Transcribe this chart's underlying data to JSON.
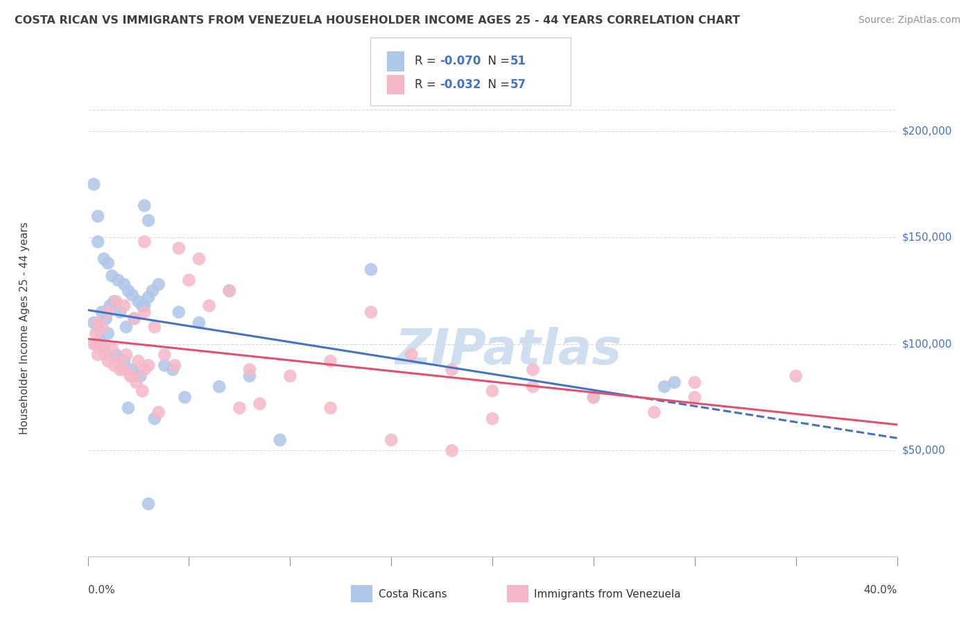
{
  "title": "COSTA RICAN VS IMMIGRANTS FROM VENEZUELA HOUSEHOLDER INCOME AGES 25 - 44 YEARS CORRELATION CHART",
  "source": "Source: ZipAtlas.com",
  "ylabel": "Householder Income Ages 25 - 44 years",
  "ytick_labels": [
    "$50,000",
    "$100,000",
    "$150,000",
    "$200,000"
  ],
  "ytick_values": [
    50000,
    100000,
    150000,
    200000
  ],
  "legend_label1": "Costa Ricans",
  "legend_label2": "Immigrants from Venezuela",
  "R1": "-0.070",
  "N1": "51",
  "R2": "-0.032",
  "N2": "57",
  "color_blue": "#aec6e8",
  "color_pink": "#f5b8c8",
  "line_color_blue": "#4472c4",
  "line_color_pink": "#e05070",
  "watermark": "ZIPatlas",
  "watermark_color": "#d0dff0",
  "background_color": "#ffffff",
  "title_color": "#404040",
  "source_color": "#909090",
  "grid_color": "#d8d8d8",
  "blue_scatter_x": [
    0.3,
    0.5,
    2.8,
    3.0,
    0.5,
    0.8,
    1.0,
    1.2,
    1.5,
    1.8,
    2.0,
    2.2,
    2.5,
    2.8,
    3.0,
    0.3,
    0.5,
    0.7,
    0.9,
    1.1,
    1.3,
    1.6,
    1.9,
    2.3,
    2.7,
    3.2,
    0.4,
    0.6,
    0.8,
    1.0,
    1.4,
    1.8,
    2.2,
    2.6,
    3.5,
    4.5,
    5.5,
    7.0,
    8.0,
    14.0,
    25.0,
    28.5,
    29.0,
    3.8,
    4.2,
    2.0,
    4.8,
    3.3,
    6.5,
    9.5,
    3.0
  ],
  "blue_scatter_y": [
    175000,
    160000,
    165000,
    158000,
    148000,
    140000,
    138000,
    132000,
    130000,
    128000,
    125000,
    123000,
    120000,
    118000,
    122000,
    110000,
    108000,
    115000,
    112000,
    118000,
    120000,
    115000,
    108000,
    112000,
    118000,
    125000,
    100000,
    102000,
    98000,
    105000,
    95000,
    92000,
    88000,
    85000,
    128000,
    115000,
    110000,
    125000,
    85000,
    135000,
    75000,
    80000,
    82000,
    90000,
    88000,
    70000,
    75000,
    65000,
    80000,
    55000,
    25000
  ],
  "pink_scatter_x": [
    0.3,
    0.5,
    0.8,
    1.0,
    1.3,
    1.6,
    1.9,
    2.2,
    2.5,
    2.8,
    0.4,
    0.6,
    0.9,
    1.2,
    1.5,
    1.8,
    2.1,
    2.4,
    2.7,
    3.0,
    0.5,
    0.7,
    1.0,
    1.4,
    1.8,
    2.3,
    2.8,
    3.3,
    3.8,
    4.3,
    5.0,
    6.0,
    7.0,
    8.0,
    10.0,
    12.0,
    14.0,
    16.0,
    18.0,
    20.0,
    22.0,
    25.0,
    30.0,
    35.0,
    2.8,
    4.5,
    5.5,
    8.5,
    12.0,
    20.0,
    28.0,
    15.0,
    18.0,
    3.5,
    7.5,
    22.0,
    30.0
  ],
  "pink_scatter_y": [
    100000,
    95000,
    98000,
    92000,
    90000,
    88000,
    95000,
    85000,
    92000,
    88000,
    105000,
    100000,
    95000,
    98000,
    92000,
    88000,
    85000,
    82000,
    78000,
    90000,
    110000,
    108000,
    115000,
    120000,
    118000,
    112000,
    115000,
    108000,
    95000,
    90000,
    130000,
    118000,
    125000,
    88000,
    85000,
    92000,
    115000,
    95000,
    88000,
    78000,
    80000,
    75000,
    82000,
    85000,
    148000,
    145000,
    140000,
    72000,
    70000,
    65000,
    68000,
    55000,
    50000,
    68000,
    70000,
    88000,
    75000
  ]
}
